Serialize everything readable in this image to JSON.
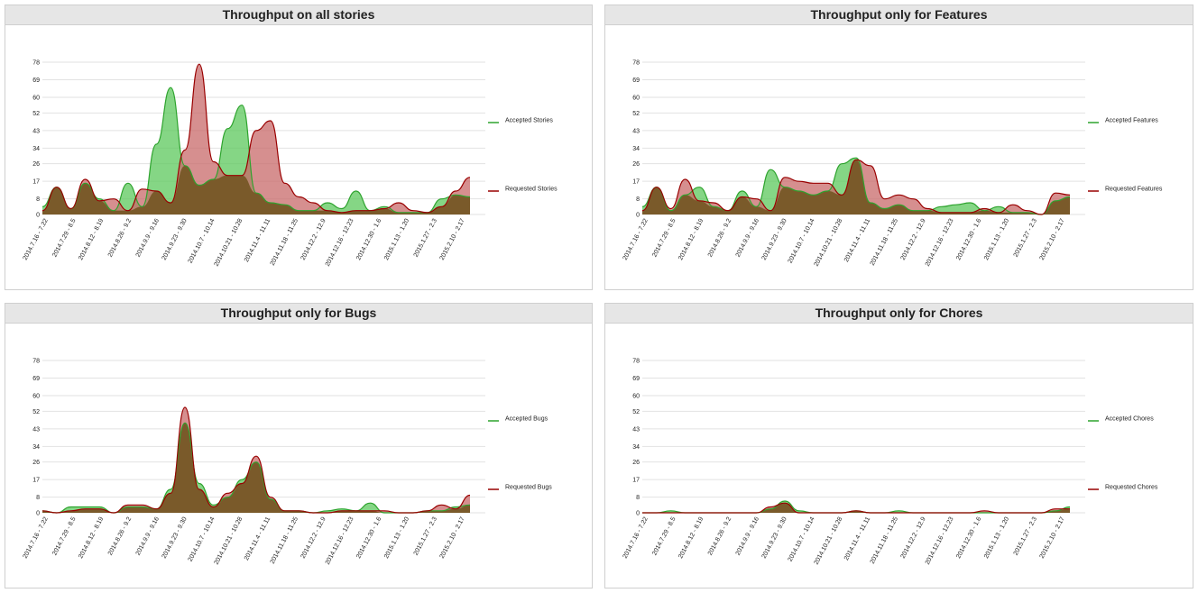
{
  "colors": {
    "accepted": "#2ea32e",
    "accepted_fill": "#5cc85c",
    "requested": "#990000",
    "requested_fill": "#c86a6a",
    "overlap": "#7a5a2a"
  },
  "panels": [
    {
      "title": "Throughput on all stories",
      "legend": {
        "accepted": "Accepted Stories",
        "requested": "Requested Stories"
      }
    },
    {
      "title": "Throughput only for Features",
      "legend": {
        "accepted": "Accepted Features",
        "requested": "Requested Features"
      }
    },
    {
      "title": "Throughput only for Bugs",
      "legend": {
        "accepted": "Accepted Bugs",
        "requested": "Requested Bugs"
      }
    },
    {
      "title": "Throughput only for Chores",
      "legend": {
        "accepted": "Accepted Chores",
        "requested": "Requested Chores"
      }
    }
  ],
  "chart_data": [
    {
      "type": "area",
      "title": "Throughput on all stories",
      "y_ticks": [
        0,
        8,
        17,
        26,
        34,
        43,
        52,
        60,
        69,
        78
      ],
      "ylim": [
        0,
        78
      ],
      "x_labels": [
        "2014.7.16 - 7.22",
        "2014.7.29 - 8.5",
        "2014.8.12 - 8.19",
        "2014.8.26 - 9.2",
        "2014.9.9 - 9.16",
        "2014.9.23 - 9.30",
        "2014.10.7 - 10.14",
        "2014.10.21 - 10.28",
        "2014.11.4 - 11.11",
        "2014.11.18 - 11.25",
        "2014.12.2 - 12.9",
        "2014.12.16 - 12.23",
        "2014.12.30 - 1.6",
        "2015.1.13 - 1.20",
        "2015.1.27 - 2.3",
        "2015.2.10 - 2.17"
      ],
      "series": [
        {
          "name": "Accepted Stories",
          "values": [
            4,
            14,
            3,
            16,
            8,
            2,
            16,
            4,
            36,
            65,
            25,
            15,
            18,
            44,
            56,
            11,
            6,
            5,
            2,
            2,
            6,
            3,
            12,
            2,
            4,
            1,
            1,
            1,
            8,
            10,
            9
          ]
        },
        {
          "name": "Requested Stories",
          "values": [
            2,
            14,
            3,
            18,
            7,
            8,
            2,
            13,
            12,
            6,
            33,
            77,
            27,
            20,
            20,
            43,
            48,
            16,
            9,
            6,
            2,
            1,
            2,
            2,
            3,
            6,
            2,
            1,
            4,
            12,
            19
          ]
        }
      ]
    },
    {
      "type": "area",
      "title": "Throughput only for Features",
      "y_ticks": [
        0,
        8,
        17,
        26,
        34,
        43,
        52,
        60,
        69,
        78
      ],
      "ylim": [
        0,
        78
      ],
      "x_labels": [
        "2014.7.16 - 7.22",
        "2014.7.29 - 8.5",
        "2014.8.12 - 8.19",
        "2014.8.26 - 9.2",
        "2014.9.9 - 9.16",
        "2014.9.23 - 9.30",
        "2014.10.7 - 10.14",
        "2014.10.21 - 10.28",
        "2014.11.4 - 11.11",
        "2014.11.18 - 11.25",
        "2014.12.2 - 12.9",
        "2014.12.16 - 12.23",
        "2014.12.30 - 1.6",
        "2015.1.13 - 1.20",
        "2015.1.27 - 2.3",
        "2015.2.10 - 2.17"
      ],
      "series": [
        {
          "name": "Accepted Features",
          "values": [
            4,
            14,
            2,
            10,
            14,
            4,
            2,
            12,
            4,
            23,
            14,
            12,
            10,
            12,
            26,
            29,
            6,
            3,
            5,
            2,
            2,
            4,
            5,
            6,
            2,
            4,
            1,
            1,
            0,
            7,
            9
          ]
        },
        {
          "name": "Requested Features",
          "values": [
            2,
            14,
            3,
            18,
            7,
            6,
            2,
            9,
            8,
            2,
            19,
            17,
            16,
            16,
            10,
            28,
            25,
            8,
            10,
            8,
            3,
            1,
            1,
            1,
            3,
            1,
            5,
            2,
            0,
            11,
            10
          ]
        }
      ]
    },
    {
      "type": "area",
      "title": "Throughput only for Bugs",
      "y_ticks": [
        0,
        8,
        17,
        26,
        34,
        43,
        52,
        60,
        69,
        78
      ],
      "ylim": [
        0,
        78
      ],
      "x_labels": [
        "2014.7.16 - 7.22",
        "2014.7.29 - 8.5",
        "2014.8.12 - 8.19",
        "2014.8.26 - 9.2",
        "2014.9.9 - 9.16",
        "2014.9.23 - 9.30",
        "2014.10.7 - 10.14",
        "2014.10.21 - 10.28",
        "2014.11.4 - 11.11",
        "2014.11.18 - 11.25",
        "2014.12.2 - 12.9",
        "2014.12.16 - 12.23",
        "2014.12.30 - 1.6",
        "2015.1.13 - 1.20",
        "2015.1.27 - 2.3",
        "2015.2.10 - 2.17"
      ],
      "series": [
        {
          "name": "Accepted Bugs",
          "values": [
            1,
            0,
            3,
            3,
            3,
            0,
            3,
            3,
            2,
            12,
            46,
            15,
            4,
            8,
            17,
            26,
            7,
            1,
            1,
            0,
            1,
            2,
            1,
            5,
            0,
            0,
            0,
            1,
            1,
            3,
            4
          ]
        },
        {
          "name": "Requested Bugs",
          "values": [
            1,
            0,
            1,
            2,
            2,
            0,
            4,
            4,
            2,
            10,
            54,
            12,
            3,
            10,
            15,
            29,
            8,
            1,
            1,
            0,
            0,
            1,
            1,
            1,
            1,
            0,
            0,
            1,
            4,
            2,
            9
          ]
        }
      ]
    },
    {
      "type": "area",
      "title": "Throughput only for Chores",
      "y_ticks": [
        0,
        8,
        17,
        26,
        34,
        43,
        52,
        60,
        69,
        78
      ],
      "ylim": [
        0,
        78
      ],
      "x_labels": [
        "2014.7.16 - 7.22",
        "2014.7.29 - 8.5",
        "2014.8.12 - 8.19",
        "2014.8.26 - 9.2",
        "2014.9.9 - 9.16",
        "2014.9.23 - 9.30",
        "2014.10.7 - 10.14",
        "2014.10.21 - 10.28",
        "2014.11.4 - 11.11",
        "2014.11.18 - 11.25",
        "2014.12.2 - 12.9",
        "2014.12.16 - 12.23",
        "2014.12.30 - 1.6",
        "2015.1.13 - 1.20",
        "2015.1.27 - 2.3",
        "2015.2.10 - 2.17"
      ],
      "series": [
        {
          "name": "Accepted Chores",
          "values": [
            0,
            0,
            1,
            0,
            0,
            0,
            0,
            0,
            0,
            2,
            6,
            1,
            0,
            0,
            0,
            1,
            0,
            0,
            1,
            0,
            0,
            0,
            0,
            0,
            0,
            0,
            0,
            0,
            0,
            1,
            3
          ]
        },
        {
          "name": "Requested Chores",
          "values": [
            0,
            0,
            0,
            0,
            0,
            0,
            0,
            0,
            0,
            3,
            5,
            0,
            0,
            0,
            0,
            1,
            0,
            0,
            0,
            0,
            0,
            0,
            0,
            0,
            1,
            0,
            0,
            0,
            0,
            2,
            2
          ]
        }
      ]
    }
  ]
}
